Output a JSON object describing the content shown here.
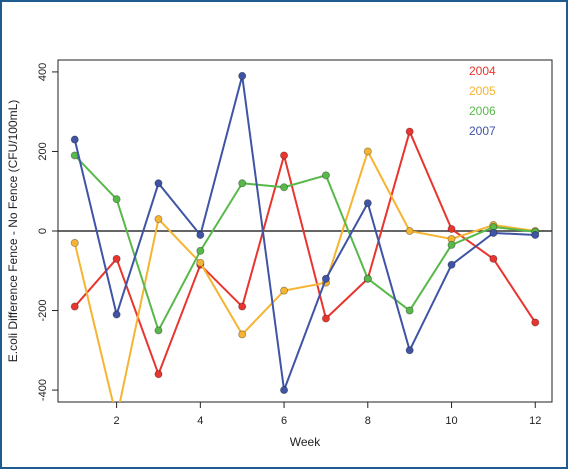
{
  "chart_data": {
    "type": "line",
    "title": "",
    "xlabel": "Week",
    "ylabel": "E.coli Difference Fence - No Fence (CFU/100mL)",
    "xlim": [
      0.6,
      12.4
    ],
    "ylim": [
      -430,
      430
    ],
    "x_ticks": [
      2,
      4,
      6,
      8,
      10,
      12
    ],
    "y_ticks": [
      -400,
      -200,
      0,
      200,
      400
    ],
    "reference_line_y": 0,
    "grid": false,
    "legend_position": "top-right",
    "x": [
      1,
      2,
      3,
      4,
      5,
      6,
      7,
      8,
      9,
      10,
      11,
      12
    ],
    "series": [
      {
        "name": "2004",
        "color": "#e8352f",
        "values": [
          -190,
          -70,
          -360,
          -85,
          -190,
          190,
          -220,
          -120,
          250,
          5,
          -70,
          -230
        ]
      },
      {
        "name": "2005",
        "color": "#f5b431",
        "values": [
          -30,
          -470,
          30,
          -80,
          -260,
          -150,
          -130,
          200,
          0,
          -20,
          15,
          0
        ]
      },
      {
        "name": "2006",
        "color": "#59b84a",
        "values": [
          190,
          80,
          -250,
          -50,
          120,
          110,
          140,
          -120,
          -200,
          -35,
          10,
          -2
        ]
      },
      {
        "name": "2007",
        "color": "#3f54a4",
        "values": [
          230,
          -210,
          120,
          -10,
          390,
          -400,
          -120,
          70,
          -300,
          -85,
          -5,
          -10
        ]
      }
    ]
  }
}
